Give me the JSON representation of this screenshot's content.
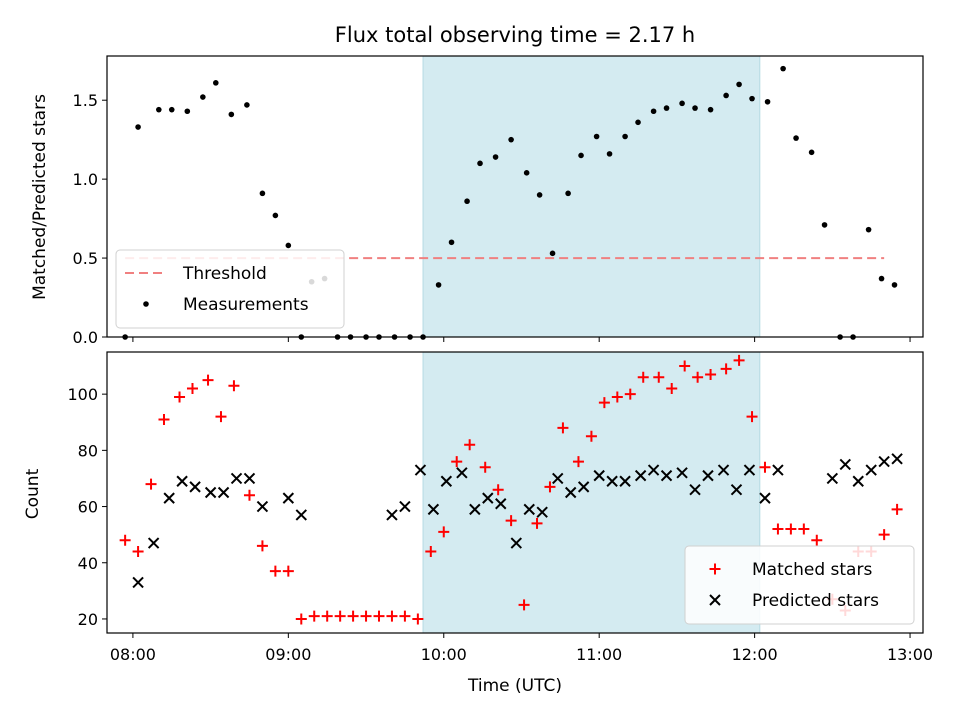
{
  "chart_data": [
    {
      "type": "scatter",
      "title": "Flux total observing time = 2.17 h",
      "xlabel": "",
      "ylabel": "Matched/Predicted stars",
      "ylim": [
        0,
        1.78
      ],
      "yticks": [
        0,
        0.5,
        1.0,
        1.5
      ],
      "ytick_labels": [
        "0.0",
        "0.5",
        "1.0",
        "1.5"
      ],
      "xlim": [
        "07:50",
        "13:05"
      ],
      "shaded_interval": [
        "09:52",
        "12:02"
      ],
      "shade_color": "#d4ebf1",
      "grid": false,
      "legend_position": "lower-left",
      "threshold": {
        "name": "Threshold",
        "value": 0.5,
        "x_range": [
          "07:57",
          "12:50"
        ],
        "color": "#f08080"
      },
      "series": [
        {
          "name": "Measurements",
          "marker": "dot",
          "color": "#000000",
          "x": [
            "07:57",
            "08:02",
            "08:10",
            "08:15",
            "08:21",
            "08:27",
            "08:32",
            "08:38",
            "08:44",
            "08:50",
            "08:55",
            "09:00",
            "09:05",
            "09:09",
            "09:14",
            "09:19",
            "09:24",
            "09:30",
            "09:35",
            "09:41",
            "09:47",
            "09:52",
            "09:58",
            "10:03",
            "10:09",
            "10:14",
            "10:20",
            "10:26",
            "10:32",
            "10:37",
            "10:42",
            "10:48",
            "10:53",
            "10:59",
            "11:04",
            "11:10",
            "11:15",
            "11:21",
            "11:26",
            "11:32",
            "11:37",
            "11:43",
            "11:49",
            "11:54",
            "11:59",
            "12:05",
            "12:11",
            "12:16",
            "12:22",
            "12:27",
            "12:33",
            "12:38",
            "12:44",
            "12:49",
            "12:54"
          ],
          "y": [
            0.0,
            1.33,
            1.44,
            1.44,
            1.43,
            1.52,
            1.61,
            1.41,
            1.47,
            0.91,
            0.77,
            0.58,
            0.0,
            0.35,
            0.37,
            0.0,
            0.0,
            0.0,
            0.0,
            0.0,
            0.0,
            0.0,
            0.33,
            0.6,
            0.86,
            1.1,
            1.14,
            1.25,
            1.04,
            0.9,
            0.53,
            0.91,
            1.15,
            1.27,
            1.16,
            1.27,
            1.36,
            1.43,
            1.45,
            1.48,
            1.45,
            1.44,
            1.53,
            1.6,
            1.51,
            1.49,
            1.7,
            1.26,
            1.17,
            0.71,
            0.0,
            0.0,
            0.68,
            0.37,
            0.33
          ]
        }
      ]
    },
    {
      "type": "scatter",
      "title": "",
      "xlabel": "Time (UTC)",
      "ylabel": "Count",
      "ylim": [
        15,
        115
      ],
      "yticks": [
        20,
        40,
        60,
        80,
        100
      ],
      "ytick_labels": [
        "20",
        "40",
        "60",
        "80",
        "100"
      ],
      "xlim": [
        "07:50",
        "13:05"
      ],
      "xticks": [
        "08:00",
        "09:00",
        "10:00",
        "11:00",
        "12:00",
        "13:00"
      ],
      "xtick_labels": [
        "08:00",
        "09:00",
        "10:00",
        "11:00",
        "12:00",
        "13:00"
      ],
      "shaded_interval": [
        "09:52",
        "12:02"
      ],
      "shade_color": "#d4ebf1",
      "grid": false,
      "legend_position": "lower-right",
      "series": [
        {
          "name": "Matched stars",
          "marker": "plus",
          "color": "#ff0000",
          "x": [
            "07:57",
            "08:02",
            "08:07",
            "08:12",
            "08:18",
            "08:23",
            "08:29",
            "08:34",
            "08:39",
            "08:45",
            "08:50",
            "08:55",
            "09:00",
            "09:05",
            "09:10",
            "09:15",
            "09:20",
            "09:25",
            "09:30",
            "09:35",
            "09:40",
            "09:45",
            "09:50",
            "09:55",
            "10:00",
            "10:05",
            "10:10",
            "10:16",
            "10:21",
            "10:26",
            "10:31",
            "10:36",
            "10:41",
            "10:46",
            "10:52",
            "10:57",
            "11:02",
            "11:07",
            "11:12",
            "11:17",
            "11:23",
            "11:28",
            "11:33",
            "11:38",
            "11:43",
            "11:49",
            "11:54",
            "11:59",
            "12:04",
            "12:09",
            "12:14",
            "12:19",
            "12:24",
            "12:30",
            "12:35",
            "12:40",
            "12:45",
            "12:50",
            "12:55"
          ],
          "y": [
            48,
            44,
            68,
            91,
            99,
            102,
            105,
            92,
            103,
            64,
            46,
            37,
            37,
            20,
            21,
            21,
            21,
            21,
            21,
            21,
            21,
            21,
            20,
            44,
            51,
            76,
            82,
            74,
            66,
            55,
            25,
            54,
            67,
            88,
            76,
            85,
            97,
            99,
            100,
            106,
            106,
            102,
            110,
            106,
            107,
            109,
            112,
            92,
            74,
            52,
            52,
            52,
            48,
            27,
            23,
            44,
            44,
            50,
            59
          ]
        },
        {
          "name": "Predicted stars",
          "marker": "x",
          "color": "#000000",
          "x": [
            "08:02",
            "08:08",
            "08:14",
            "08:19",
            "08:24",
            "08:30",
            "08:35",
            "08:40",
            "08:45",
            "08:50",
            "09:00",
            "09:05",
            "09:40",
            "09:45",
            "09:51",
            "09:56",
            "10:01",
            "10:07",
            "10:12",
            "10:17",
            "10:22",
            "10:28",
            "10:33",
            "10:38",
            "10:44",
            "10:49",
            "10:54",
            "11:00",
            "11:05",
            "11:10",
            "11:16",
            "11:21",
            "11:26",
            "11:32",
            "11:37",
            "11:42",
            "11:48",
            "11:53",
            "11:58",
            "12:04",
            "12:09",
            "12:30",
            "12:35",
            "12:40",
            "12:45",
            "12:50",
            "12:55"
          ],
          "y": [
            33,
            47,
            63,
            69,
            67,
            65,
            65,
            70,
            70,
            60,
            63,
            57,
            57,
            60,
            73,
            59,
            69,
            72,
            59,
            63,
            61,
            47,
            59,
            58,
            70,
            65,
            67,
            71,
            69,
            69,
            71,
            73,
            71,
            72,
            66,
            71,
            73,
            66,
            73,
            63,
            73,
            70,
            75,
            69,
            73,
            76,
            77
          ]
        }
      ]
    }
  ]
}
